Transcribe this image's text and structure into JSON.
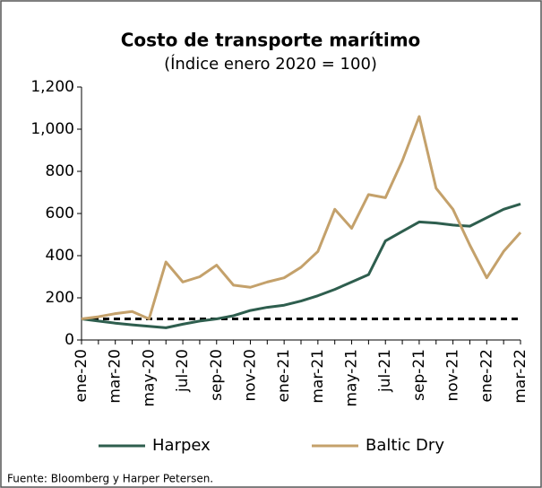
{
  "chart_data": {
    "type": "line",
    "title": "Costo de transporte marítimo",
    "subtitle": "(Índice enero 2020 = 100)",
    "source": "Fuente: Bloomberg y Harper Petersen.",
    "categories": [
      "ene-20",
      null,
      "mar-20",
      null,
      "may-20",
      null,
      "jul-20",
      null,
      "sep-20",
      null,
      "nov-20",
      null,
      "ene-21",
      null,
      "mar-21",
      null,
      "may-21",
      null,
      "jul-21",
      null,
      "sep-21",
      null,
      "nov-21",
      null,
      "ene-22",
      null,
      "mar-22"
    ],
    "series": [
      {
        "name": "Harpex",
        "color": "#2e5e4e",
        "values": [
          100,
          90,
          80,
          72,
          65,
          58,
          75,
          90,
          100,
          115,
          140,
          155,
          165,
          185,
          210,
          240,
          275,
          310,
          470,
          515,
          560,
          555,
          545,
          540,
          580,
          620,
          645
        ]
      },
      {
        "name": "Baltic Dry",
        "color": "#c4a16b",
        "values": [
          100,
          110,
          125,
          135,
          100,
          370,
          275,
          300,
          355,
          260,
          250,
          275,
          295,
          345,
          420,
          620,
          530,
          690,
          675,
          850,
          1060,
          720,
          620,
          450,
          295,
          420,
          510
        ]
      }
    ],
    "reference_line": 100,
    "ylim": [
      0,
      1200
    ],
    "yticks": [
      0,
      200,
      400,
      600,
      800,
      {
        "value": 1000,
        "label": "1,000"
      },
      {
        "value": 1200,
        "label": "1,200"
      }
    ],
    "legend": "bottom"
  }
}
